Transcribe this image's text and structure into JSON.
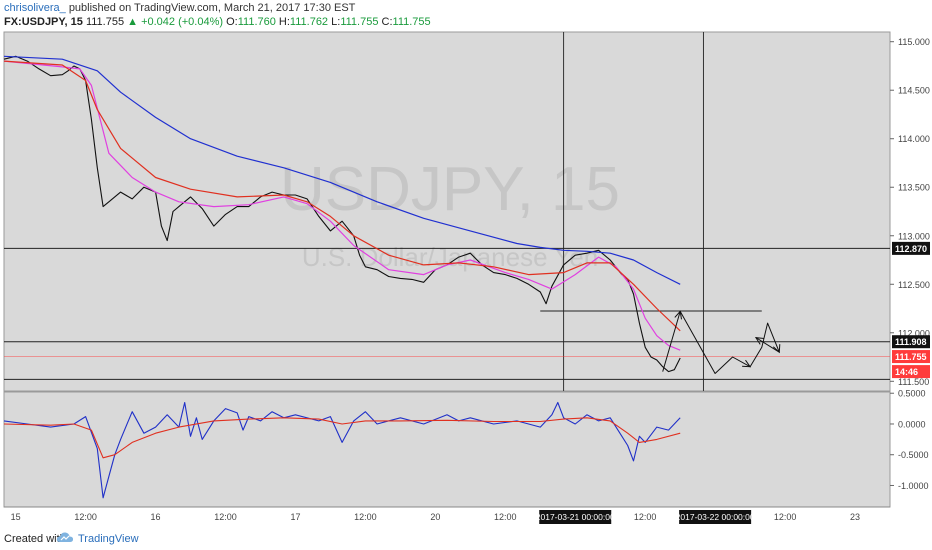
{
  "header": {
    "author": "chrisolivera_",
    "published": "published on TradingView.com, March 21, 2017 17:30 EST",
    "symbol": "FX:USDJPY, 15",
    "last": "111.755",
    "change": "▲ +0.042 (+0.04%)",
    "o_label": "O:",
    "o": "111.760",
    "h_label": "H:",
    "h": "111.762",
    "l_label": "L:",
    "l": "111.755",
    "c_label": "C:",
    "c": "111.755"
  },
  "watermark": {
    "line1": "USDJPY, 15",
    "line2": "U.S. Dollar/Japanese Yen"
  },
  "footer": {
    "created_with": "Created with",
    "brand": "TradingView"
  },
  "colors": {
    "panel_bg": "#d9d9d9",
    "price": "#111111",
    "ma_fast": "#e040e0",
    "ma_mid": "#e03020",
    "ma_slow": "#2030d0",
    "osc": "#2030c8",
    "osc_signal": "#e03020",
    "accent_label": "#ff3b3b"
  },
  "chart_data": [
    {
      "type": "line",
      "title": "USDJPY, 15",
      "y_axis": {
        "ylim": [
          111.4,
          115.1
        ],
        "ticks": [
          "115.000",
          "114.500",
          "114.000",
          "113.500",
          "113.000",
          "112.500",
          "112.000",
          "111.500"
        ],
        "tick_values": [
          115.0,
          114.5,
          114.0,
          113.5,
          113.0,
          112.5,
          112.0,
          111.5
        ],
        "labels": [
          {
            "text": "112.870",
            "value": 112.87,
            "style": "dark"
          },
          {
            "text": "111.908",
            "value": 111.908,
            "style": "dark"
          },
          {
            "text": "111.755",
            "value": 111.755,
            "style": "accent"
          },
          {
            "text": "14:46",
            "value": 111.6,
            "style": "accent"
          }
        ]
      },
      "x_axis": {
        "ticks": [
          "15",
          "12:00",
          "16",
          "12:00",
          "17",
          "12:00",
          "20",
          "12:00",
          "12:00",
          "12:00",
          "23"
        ],
        "tick_index": [
          2,
          14,
          26,
          38,
          50,
          62,
          74,
          86,
          110,
          134,
          146
        ],
        "highlighted": [
          {
            "text": "2017-03-21 00:00:00",
            "index": 98
          },
          {
            "text": "2017-03-22 00:00:00",
            "index": 122
          }
        ],
        "index_range": [
          0,
          152
        ]
      },
      "series": [
        {
          "role": "price",
          "x": [
            0,
            2,
            4,
            6,
            8,
            10,
            11,
            12,
            13,
            14,
            15,
            16,
            17,
            18,
            20,
            22,
            24,
            26,
            27,
            28,
            29,
            30,
            32,
            34,
            36,
            38,
            40,
            42,
            44,
            46,
            48,
            50,
            52,
            54,
            56,
            58,
            60,
            61,
            62,
            64,
            66,
            68,
            70,
            72,
            74,
            76,
            78,
            80,
            82,
            84,
            86,
            88,
            90,
            92,
            93,
            94,
            96,
            98,
            100,
            102,
            104,
            106,
            107,
            108,
            109,
            110,
            111,
            112,
            113,
            114,
            115,
            116
          ],
          "y": [
            114.82,
            114.85,
            114.8,
            114.72,
            114.65,
            114.66,
            114.7,
            114.75,
            114.72,
            114.6,
            114.2,
            113.7,
            113.3,
            113.35,
            113.45,
            113.38,
            113.5,
            113.45,
            113.1,
            112.95,
            113.25,
            113.3,
            113.4,
            113.28,
            113.1,
            113.22,
            113.3,
            113.3,
            113.4,
            113.45,
            113.42,
            113.42,
            113.38,
            113.2,
            113.05,
            113.15,
            113.0,
            112.8,
            112.68,
            112.65,
            112.58,
            112.56,
            112.55,
            112.52,
            112.65,
            112.7,
            112.78,
            112.82,
            112.7,
            112.62,
            112.6,
            112.56,
            112.5,
            112.42,
            112.3,
            112.48,
            112.7,
            112.8,
            112.82,
            112.85,
            112.75,
            112.6,
            112.55,
            112.4,
            112.1,
            111.85,
            111.75,
            111.72,
            111.65,
            111.6,
            111.62,
            111.74
          ]
        },
        {
          "role": "ma_fast",
          "x": [
            0,
            10,
            13,
            15,
            18,
            22,
            26,
            30,
            36,
            42,
            48,
            52,
            56,
            60,
            66,
            72,
            76,
            80,
            86,
            90,
            94,
            98,
            102,
            105,
            108,
            110,
            112,
            114,
            116
          ],
          "y": [
            114.8,
            114.74,
            114.72,
            114.55,
            113.85,
            113.6,
            113.45,
            113.35,
            113.3,
            113.32,
            113.4,
            113.33,
            113.15,
            112.9,
            112.65,
            112.6,
            112.7,
            112.75,
            112.62,
            112.55,
            112.45,
            112.6,
            112.78,
            112.68,
            112.45,
            112.15,
            111.97,
            111.87,
            111.82
          ]
        },
        {
          "role": "ma_mid",
          "x": [
            0,
            10,
            14,
            16,
            20,
            26,
            32,
            40,
            48,
            52,
            56,
            60,
            66,
            72,
            78,
            84,
            90,
            96,
            100,
            104,
            108,
            112,
            116
          ],
          "y": [
            114.8,
            114.76,
            114.6,
            114.3,
            113.9,
            113.6,
            113.48,
            113.4,
            113.42,
            113.35,
            113.2,
            113.0,
            112.8,
            112.7,
            112.72,
            112.68,
            112.6,
            112.62,
            112.72,
            112.72,
            112.5,
            112.25,
            112.02
          ]
        },
        {
          "role": "ma_slow",
          "x": [
            0,
            10,
            16,
            20,
            26,
            32,
            40,
            48,
            56,
            64,
            72,
            80,
            88,
            92,
            96,
            100,
            104,
            108,
            112,
            116
          ],
          "y": [
            114.85,
            114.82,
            114.7,
            114.48,
            114.22,
            114.0,
            113.82,
            113.7,
            113.55,
            113.35,
            113.18,
            113.05,
            112.92,
            112.88,
            112.85,
            112.84,
            112.82,
            112.75,
            112.62,
            112.5
          ]
        },
        {
          "role": "projection",
          "x": [
            113,
            116,
            122,
            125,
            128,
            130,
            131,
            133,
            129
          ],
          "y": [
            111.6,
            112.22,
            111.58,
            111.75,
            111.65,
            111.85,
            112.1,
            111.8,
            111.95
          ]
        }
      ],
      "levels": [
        {
          "value": 112.87,
          "x_from": 0,
          "x_to": 152
        },
        {
          "value": 112.225,
          "x_from": 92,
          "x_to": 130
        },
        {
          "value": 111.908,
          "x_from": 0,
          "x_to": 152
        },
        {
          "value": 111.755,
          "x_from": 0,
          "x_to": 152,
          "style": "current"
        },
        {
          "value": 111.52,
          "x_from": 0,
          "x_to": 152
        }
      ],
      "vertical_lines": [
        96,
        120
      ]
    },
    {
      "type": "line",
      "y_axis": {
        "ylim": [
          -1.35,
          0.52
        ],
        "ticks": [
          "0.5000",
          "0.0000",
          "-0.5000",
          "-1.0000"
        ],
        "tick_values": [
          0.5,
          0.0,
          -0.5,
          -1.0
        ]
      },
      "series": [
        {
          "role": "osc",
          "x": [
            0,
            4,
            8,
            12,
            14,
            16,
            17,
            18,
            19,
            20,
            22,
            24,
            26,
            28,
            30,
            31,
            32,
            33,
            34,
            36,
            38,
            40,
            41,
            42,
            44,
            46,
            48,
            50,
            54,
            56,
            58,
            60,
            62,
            64,
            68,
            72,
            76,
            78,
            80,
            84,
            88,
            92,
            94,
            95,
            96,
            98,
            100,
            102,
            104,
            106,
            107,
            108,
            109,
            110,
            112,
            114,
            116
          ],
          "y": [
            0.05,
            0.0,
            -0.05,
            0.0,
            0.12,
            -0.4,
            -1.2,
            -0.85,
            -0.5,
            -0.25,
            0.2,
            -0.15,
            -0.05,
            0.15,
            -0.05,
            0.35,
            -0.2,
            0.1,
            -0.25,
            0.05,
            0.25,
            0.18,
            -0.1,
            0.12,
            0.05,
            0.2,
            0.1,
            0.15,
            0.05,
            0.12,
            -0.3,
            0.05,
            0.2,
            0.0,
            0.1,
            0.0,
            0.15,
            0.05,
            0.1,
            0.0,
            0.05,
            -0.05,
            0.15,
            0.35,
            0.1,
            0.0,
            0.15,
            0.05,
            0.1,
            -0.2,
            -0.35,
            -0.6,
            -0.2,
            -0.3,
            -0.05,
            -0.1,
            0.1
          ]
        },
        {
          "role": "osc_signal",
          "x": [
            0,
            8,
            12,
            15,
            17,
            19,
            22,
            26,
            30,
            36,
            42,
            48,
            54,
            58,
            62,
            68,
            76,
            84,
            92,
            96,
            100,
            104,
            107,
            109,
            112,
            116
          ],
          "y": [
            0.0,
            -0.02,
            0.0,
            -0.1,
            -0.55,
            -0.5,
            -0.3,
            -0.15,
            -0.05,
            0.05,
            0.08,
            0.1,
            0.08,
            0.0,
            0.05,
            0.05,
            0.06,
            0.04,
            0.04,
            0.08,
            0.1,
            0.05,
            -0.15,
            -0.3,
            -0.25,
            -0.15
          ]
        }
      ]
    }
  ]
}
